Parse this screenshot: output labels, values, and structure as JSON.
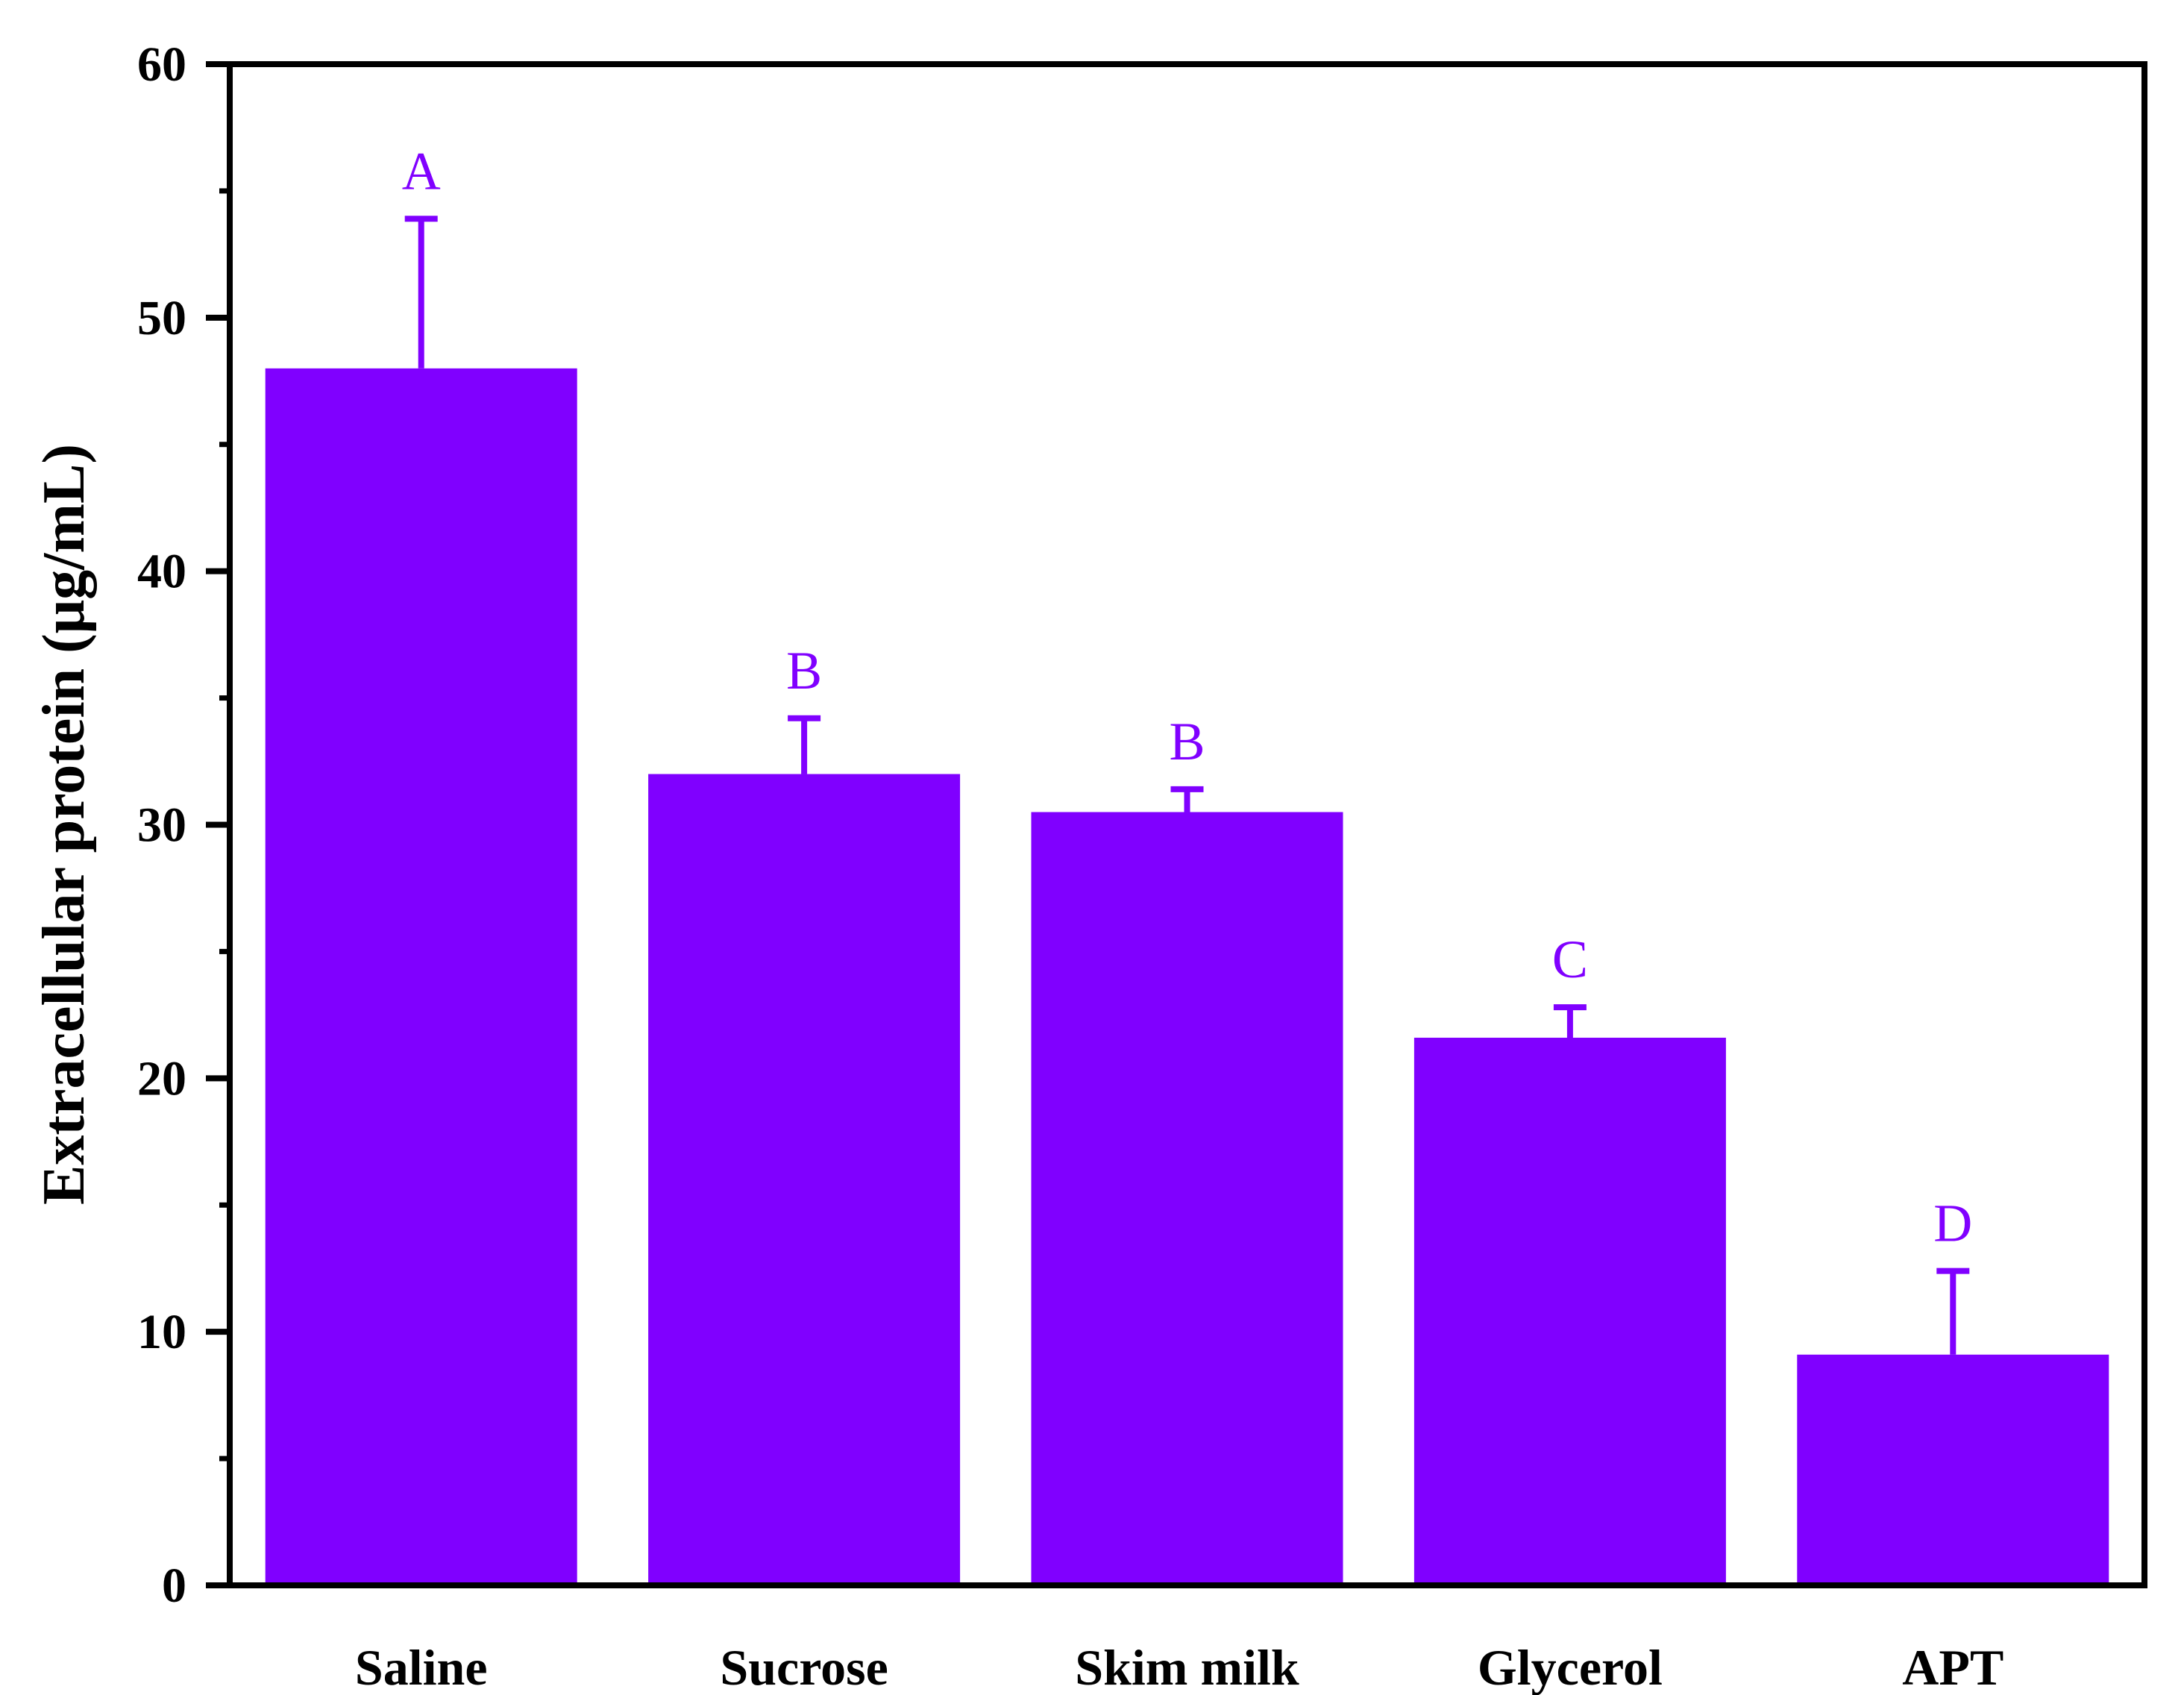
{
  "chart_data": {
    "type": "bar",
    "title": "",
    "xlabel": "",
    "ylabel": "Extracellular protein (μg/mL)",
    "categories": [
      "Saline",
      "Sucrose",
      "Skim milk",
      "Glycerol",
      "APT"
    ],
    "values": [
      48,
      32,
      30.5,
      21.6,
      9.1
    ],
    "error": [
      5.9,
      2.2,
      0.9,
      1.2,
      3.3
    ],
    "significance": [
      "A",
      "B",
      "B",
      "C",
      "D"
    ],
    "ylim": [
      0,
      60
    ],
    "yticks": [
      0,
      10,
      20,
      30,
      40,
      50,
      60
    ],
    "grid": false,
    "bar_color": "#8000FF"
  }
}
